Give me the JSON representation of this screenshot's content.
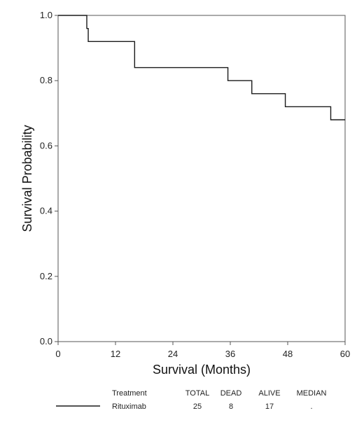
{
  "chart_data": {
    "type": "line",
    "subtype": "kaplan-meier step curve",
    "title": "",
    "xlabel": "Survival (Months)",
    "ylabel": "Survival Probability",
    "xlim": [
      0,
      60
    ],
    "ylim": [
      0,
      1.0
    ],
    "x_ticks": [
      0,
      12,
      24,
      36,
      48,
      60
    ],
    "x_tick_labels": [
      "0",
      "12",
      "24",
      "36",
      "48",
      "60"
    ],
    "y_ticks": [
      0,
      0.2,
      0.4,
      0.6,
      0.8,
      1.0
    ],
    "y_tick_labels": [
      "0.0",
      "0.2",
      "0.4",
      "0.6",
      "0.8",
      "1.0"
    ],
    "grid": false,
    "line_color": "#1a1a1a",
    "series": [
      {
        "name": "Rituximab",
        "x": [
          0,
          6,
          6.3,
          16,
          35.5,
          40.5,
          47.5,
          57,
          60
        ],
        "y": [
          1.0,
          0.96,
          0.92,
          0.84,
          0.8,
          0.76,
          0.72,
          0.68,
          0.68
        ]
      }
    ],
    "legend": {
      "placement": "bottom",
      "headers": [
        "Treatment",
        "TOTAL",
        "DEAD",
        "ALIVE",
        "MEDIAN"
      ],
      "rows": [
        {
          "treatment": "Rituximab",
          "total": "25",
          "dead": "8",
          "alive": "17",
          "median": "."
        }
      ]
    }
  }
}
